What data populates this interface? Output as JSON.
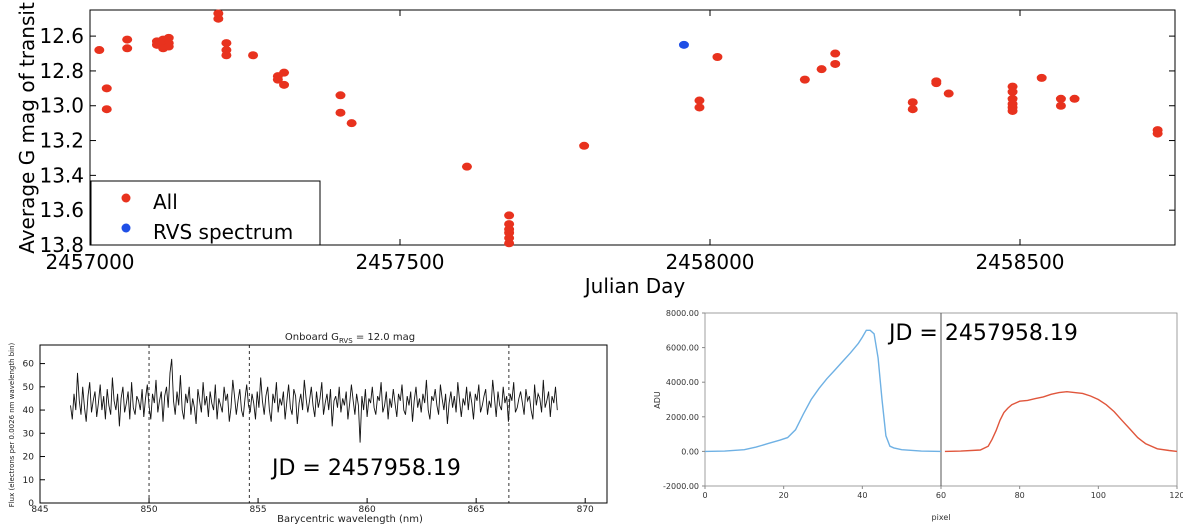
{
  "colors": {
    "all": "#e8321e",
    "rvs": "#1f4fe6",
    "spectrum": "#111111",
    "adu_left": "#6fb1e4",
    "adu_right": "#e0563c"
  },
  "chart_data": [
    {
      "type": "scatter",
      "xlabel": "Julian Day",
      "ylabel": "Average G mag of transit",
      "xlim": [
        2457000,
        2458750
      ],
      "ylim": [
        13.8,
        12.45
      ],
      "y_inverted": true,
      "xticks": [
        2457000,
        2457500,
        2458000,
        2458500
      ],
      "xtick_labels": [
        "2457000",
        "2457500",
        "2458000",
        "2458500"
      ],
      "yticks": [
        12.6,
        12.8,
        13.0,
        13.2,
        13.4,
        13.6,
        13.8
      ],
      "ytick_labels": [
        "12.6",
        "12.8",
        "13.0",
        "13.2",
        "13.4",
        "13.6",
        "13.8"
      ],
      "legend_position": "bottom-left",
      "series": [
        {
          "name": "All",
          "color": "#e8321e",
          "points": [
            [
              2457015,
              12.68
            ],
            [
              2457027,
              12.9
            ],
            [
              2457027,
              13.02
            ],
            [
              2457060,
              12.62
            ],
            [
              2457060,
              12.67
            ],
            [
              2457108,
              12.63
            ],
            [
              2457108,
              12.65
            ],
            [
              2457118,
              12.62
            ],
            [
              2457118,
              12.64
            ],
            [
              2457118,
              12.67
            ],
            [
              2457127,
              12.61
            ],
            [
              2457127,
              12.64
            ],
            [
              2457127,
              12.66
            ],
            [
              2457207,
              12.47
            ],
            [
              2457207,
              12.5
            ],
            [
              2457220,
              12.64
            ],
            [
              2457220,
              12.68
            ],
            [
              2457220,
              12.71
            ],
            [
              2457263,
              12.71
            ],
            [
              2457303,
              12.83
            ],
            [
              2457303,
              12.85
            ],
            [
              2457313,
              12.81
            ],
            [
              2457313,
              12.88
            ],
            [
              2457404,
              12.94
            ],
            [
              2457404,
              13.04
            ],
            [
              2457422,
              13.1
            ],
            [
              2457608,
              13.35
            ],
            [
              2457676,
              13.63
            ],
            [
              2457676,
              13.68
            ],
            [
              2457676,
              13.71
            ],
            [
              2457676,
              13.73
            ],
            [
              2457676,
              13.76
            ],
            [
              2457676,
              13.79
            ],
            [
              2457797,
              13.23
            ],
            [
              2457983,
              12.97
            ],
            [
              2457983,
              13.01
            ],
            [
              2458012,
              12.72
            ],
            [
              2458153,
              12.85
            ],
            [
              2458180,
              12.79
            ],
            [
              2458202,
              12.7
            ],
            [
              2458202,
              12.76
            ],
            [
              2458327,
              12.98
            ],
            [
              2458327,
              13.02
            ],
            [
              2458365,
              12.86
            ],
            [
              2458365,
              12.87
            ],
            [
              2458385,
              12.93
            ],
            [
              2458488,
              12.89
            ],
            [
              2458488,
              12.92
            ],
            [
              2458488,
              12.96
            ],
            [
              2458488,
              12.99
            ],
            [
              2458488,
              13.01
            ],
            [
              2458488,
              13.03
            ],
            [
              2458535,
              12.84
            ],
            [
              2458566,
              12.96
            ],
            [
              2458566,
              13.0
            ],
            [
              2458588,
              12.96
            ],
            [
              2458722,
              13.14
            ],
            [
              2458722,
              13.16
            ]
          ]
        },
        {
          "name": "RVS spectrum",
          "color": "#1f4fe6",
          "points": [
            [
              2457958,
              12.65
            ]
          ]
        }
      ]
    },
    {
      "type": "line",
      "title": "Onboard G",
      "title_sub": "RVS",
      "title_suffix": " = 12.0 mag",
      "xlabel": "Barycentric wavelength (nm)",
      "ylabel": "Flux (electrons per 0.0026 nm wavelength bin)",
      "xlim": [
        845,
        871
      ],
      "ylim": [
        0,
        68
      ],
      "xticks": [
        845,
        850,
        855,
        860,
        865,
        870
      ],
      "yticks": [
        0,
        10,
        20,
        30,
        40,
        50,
        60
      ],
      "dashed_lines": [
        850.0,
        854.6,
        866.5
      ],
      "annotation": "JD = 2457958.19",
      "series": [
        {
          "x_start": 846.4,
          "x_step": 0.08,
          "values": [
            42,
            36,
            47,
            40,
            56,
            44,
            38,
            50,
            41,
            35,
            46,
            52,
            39,
            44,
            48,
            37,
            43,
            51,
            40,
            46,
            36,
            49,
            42,
            38,
            54,
            44,
            40,
            47,
            33,
            45,
            50,
            39,
            43,
            48,
            36,
            52,
            41,
            38,
            46,
            44,
            40,
            49,
            37,
            45,
            51,
            42,
            36,
            47,
            43,
            53,
            39,
            44,
            48,
            35,
            46,
            50,
            41,
            56,
            62,
            44,
            38,
            48,
            42,
            55,
            40,
            36,
            47,
            43,
            50,
            38,
            45,
            41,
            34,
            49,
            44,
            39,
            52,
            42,
            46,
            37,
            48,
            43,
            40,
            51,
            36,
            45,
            42,
            39,
            50,
            44,
            47,
            35,
            41,
            53,
            46,
            38,
            44,
            49,
            40,
            37,
            45,
            51,
            42,
            39,
            47,
            43,
            36,
            48,
            41,
            54,
            44,
            38,
            46,
            50,
            40,
            35,
            47,
            43,
            52,
            39,
            45,
            42,
            48,
            36,
            44,
            51,
            41,
            38,
            49,
            46,
            34,
            43,
            47,
            40,
            53,
            45,
            39,
            44,
            50,
            42,
            37,
            48,
            41,
            45,
            52,
            38,
            43,
            47,
            40,
            49,
            33,
            44,
            46,
            41,
            50,
            39,
            45,
            42,
            48,
            36,
            43,
            51,
            44,
            38,
            47,
            42,
            26,
            46,
            40,
            49,
            37,
            45,
            43,
            50,
            41,
            38,
            46,
            44,
            52,
            39,
            42,
            48,
            36,
            45,
            41,
            49,
            43,
            37,
            47,
            44,
            51,
            40,
            38,
            46,
            42,
            48,
            35,
            44,
            50,
            41,
            45,
            39,
            47,
            43,
            53,
            40,
            36,
            46,
            44,
            49,
            42,
            38,
            51,
            45,
            40,
            47,
            34,
            43,
            48,
            41,
            46,
            39,
            52,
            44,
            37,
            45,
            42,
            50,
            40,
            48,
            43,
            36,
            47,
            44,
            51,
            39,
            42,
            46,
            49,
            38,
            44,
            41,
            53,
            45,
            37,
            48,
            42,
            40,
            50,
            43,
            46,
            35,
            47,
            44,
            52,
            39,
            41,
            45,
            48,
            43,
            38,
            49,
            44,
            46,
            40,
            36,
            51,
            42,
            47,
            45,
            39,
            53,
            41,
            44,
            48,
            37,
            46,
            43,
            50,
            40
          ]
        }
      ]
    },
    {
      "type": "line",
      "xlabel": "pixel",
      "ylabel": "ADU",
      "xlim": [
        0,
        120
      ],
      "ylim": [
        -2000,
        8000
      ],
      "xticks": [
        0,
        20,
        40,
        60,
        80,
        100,
        120
      ],
      "yticks": [
        -2000,
        0,
        2000,
        4000,
        6000,
        8000
      ],
      "ytick_labels": [
        "-2000.00",
        "0.00",
        "2000.00",
        "4000.00",
        "6000.00",
        "8000.00"
      ],
      "divider_x": 60,
      "annotation": "JD = 2457958.19",
      "series": [
        {
          "x": [
            0,
            5,
            10,
            13,
            16,
            19,
            21,
            23,
            25,
            27,
            29,
            31,
            33,
            35,
            37,
            39,
            40,
            41,
            42,
            43,
            44,
            45,
            46,
            47,
            48,
            50,
            55,
            60
          ],
          "y": [
            0,
            20,
            100,
            250,
            450,
            650,
            800,
            1250,
            2150,
            3000,
            3650,
            4200,
            4700,
            5200,
            5700,
            6250,
            6600,
            7000,
            7000,
            6800,
            5400,
            3000,
            900,
            300,
            200,
            100,
            20,
            0
          ],
          "color": "#6fb1e4"
        },
        {
          "x": [
            61,
            65,
            70,
            72,
            73,
            74,
            75,
            76,
            77,
            78,
            79,
            80,
            82,
            84,
            86,
            88,
            90,
            92,
            94,
            96,
            98,
            100,
            102,
            104,
            106,
            108,
            110,
            112,
            115,
            118,
            120
          ],
          "y": [
            0,
            20,
            80,
            300,
            700,
            1200,
            1800,
            2250,
            2500,
            2700,
            2800,
            2900,
            2950,
            3050,
            3150,
            3300,
            3400,
            3450,
            3400,
            3350,
            3200,
            3000,
            2700,
            2300,
            1800,
            1300,
            800,
            450,
            150,
            50,
            0
          ],
          "color": "#e0563c"
        }
      ]
    }
  ]
}
